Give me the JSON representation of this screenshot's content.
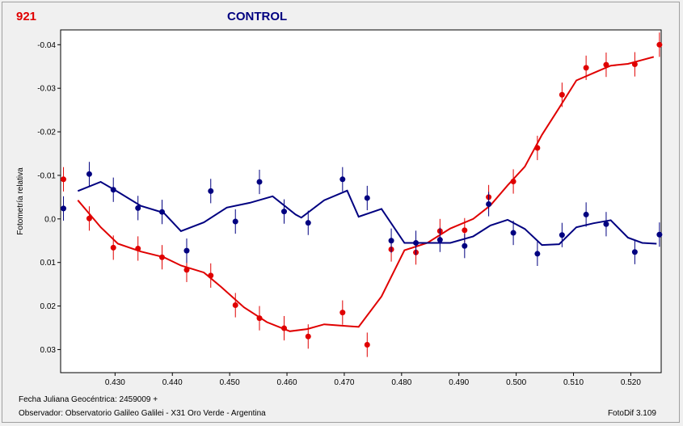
{
  "header": {
    "star_id": "921",
    "title": "CONTROL"
  },
  "footer": {
    "jd_line": "Fecha Juliana Geocéntrica: 2459009 +",
    "observer_line": "Observador: Observatorio Galileo Galilei - X31 Oro Verde - Argentina",
    "version": "FotoDif 3.109"
  },
  "chart_data": {
    "type": "scatter",
    "ylabel": "Fotometría relativa",
    "xlim": [
      0.4205,
      0.5253
    ],
    "ylim": [
      -0.0434,
      0.0353
    ],
    "y_inverted": true,
    "xticks": [
      0.43,
      0.44,
      0.45,
      0.46,
      0.47,
      0.48,
      0.49,
      0.5,
      0.51,
      0.52
    ],
    "xtick_labels": [
      "0.430",
      "0.440",
      "0.450",
      "0.460",
      "0.470",
      "0.480",
      "0.490",
      "0.500",
      "0.510",
      "0.520"
    ],
    "yticks": [
      -0.04,
      -0.03,
      -0.02,
      -0.01,
      0.0,
      0.01,
      0.02,
      0.03
    ],
    "ytick_labels": [
      "-0.04",
      "-0.03",
      "-0.02",
      "-0.01",
      "0.0",
      "0.01",
      "0.02",
      "0.03"
    ],
    "grid": false,
    "error_bar": 0.0028,
    "series": [
      {
        "color": "#e00000",
        "points": [
          [
            0.421,
            -0.0091
          ],
          [
            0.4255,
            -0.0001
          ],
          [
            0.4297,
            0.0066
          ],
          [
            0.434,
            0.0068
          ],
          [
            0.4382,
            0.0088
          ],
          [
            0.4425,
            0.0117
          ],
          [
            0.4467,
            0.013
          ],
          [
            0.451,
            0.0198
          ],
          [
            0.4552,
            0.0228
          ],
          [
            0.4595,
            0.0251
          ],
          [
            0.4637,
            0.027
          ],
          [
            0.4697,
            0.0215
          ],
          [
            0.474,
            0.0289
          ],
          [
            0.4782,
            0.007
          ],
          [
            0.4825,
            0.0077
          ],
          [
            0.4867,
            0.0028
          ],
          [
            0.491,
            0.0026
          ],
          [
            0.4952,
            -0.005
          ],
          [
            0.4995,
            -0.0086
          ],
          [
            0.5037,
            -0.0163
          ],
          [
            0.508,
            -0.0285
          ],
          [
            0.5122,
            -0.0347
          ],
          [
            0.5157,
            -0.0354
          ],
          [
            0.5207,
            -0.0355
          ],
          [
            0.525,
            -0.04
          ]
        ],
        "fit": [
          [
            0.4235,
            -0.0043
          ],
          [
            0.4275,
            0.0019
          ],
          [
            0.4305,
            0.0057
          ],
          [
            0.4345,
            0.0075
          ],
          [
            0.4385,
            0.0088
          ],
          [
            0.4415,
            0.0107
          ],
          [
            0.4455,
            0.0123
          ],
          [
            0.4485,
            0.0156
          ],
          [
            0.4525,
            0.0203
          ],
          [
            0.4565,
            0.0237
          ],
          [
            0.4605,
            0.0258
          ],
          [
            0.4635,
            0.0253
          ],
          [
            0.4665,
            0.0242
          ],
          [
            0.4705,
            0.0246
          ],
          [
            0.4725,
            0.0248
          ],
          [
            0.4765,
            0.0178
          ],
          [
            0.4805,
            0.0072
          ],
          [
            0.4845,
            0.0055
          ],
          [
            0.4885,
            0.0022
          ],
          [
            0.4925,
            0.0
          ],
          [
            0.4955,
            -0.0031
          ],
          [
            0.4985,
            -0.0077
          ],
          [
            0.5015,
            -0.012
          ],
          [
            0.5045,
            -0.0193
          ],
          [
            0.5075,
            -0.0255
          ],
          [
            0.5105,
            -0.0318
          ],
          [
            0.5135,
            -0.0335
          ],
          [
            0.5165,
            -0.0352
          ],
          [
            0.5195,
            -0.0356
          ],
          [
            0.522,
            -0.0365
          ],
          [
            0.524,
            -0.0372
          ]
        ]
      },
      {
        "color": "#000080",
        "points": [
          [
            0.421,
            -0.0024
          ],
          [
            0.4255,
            -0.0103
          ],
          [
            0.4297,
            -0.0067
          ],
          [
            0.434,
            -0.0025
          ],
          [
            0.4382,
            -0.0016
          ],
          [
            0.4425,
            0.0073
          ],
          [
            0.4467,
            -0.0064
          ],
          [
            0.451,
            0.0006
          ],
          [
            0.4552,
            -0.0085
          ],
          [
            0.4595,
            -0.0017
          ],
          [
            0.4637,
            0.0009
          ],
          [
            0.4697,
            -0.0091
          ],
          [
            0.474,
            -0.0048
          ],
          [
            0.4782,
            0.005
          ],
          [
            0.4825,
            0.0055
          ],
          [
            0.4867,
            0.0048
          ],
          [
            0.491,
            0.0062
          ],
          [
            0.4952,
            -0.0034
          ],
          [
            0.4995,
            0.0032
          ],
          [
            0.5037,
            0.008
          ],
          [
            0.508,
            0.0037
          ],
          [
            0.5122,
            -0.001
          ],
          [
            0.5157,
            0.0012
          ],
          [
            0.5207,
            0.0076
          ],
          [
            0.525,
            0.0036
          ]
        ],
        "fit": [
          [
            0.4235,
            -0.0064
          ],
          [
            0.4275,
            -0.0085
          ],
          [
            0.4305,
            -0.0062
          ],
          [
            0.4345,
            -0.003
          ],
          [
            0.4385,
            -0.0014
          ],
          [
            0.4415,
            0.0028
          ],
          [
            0.4455,
            0.0008
          ],
          [
            0.4495,
            -0.0026
          ],
          [
            0.4535,
            -0.0037
          ],
          [
            0.4575,
            -0.0052
          ],
          [
            0.4615,
            -0.001
          ],
          [
            0.4625,
            -0.0003
          ],
          [
            0.4665,
            -0.0043
          ],
          [
            0.4705,
            -0.0065
          ],
          [
            0.4725,
            -0.0005
          ],
          [
            0.4765,
            -0.0023
          ],
          [
            0.4805,
            0.0055
          ],
          [
            0.4845,
            0.0055
          ],
          [
            0.4885,
            0.0055
          ],
          [
            0.4925,
            0.004
          ],
          [
            0.4955,
            0.0015
          ],
          [
            0.4985,
            0.0002
          ],
          [
            0.5015,
            0.0023
          ],
          [
            0.5045,
            0.006
          ],
          [
            0.5075,
            0.0058
          ],
          [
            0.5105,
            0.0019
          ],
          [
            0.5135,
            0.001
          ],
          [
            0.5165,
            0.0003
          ],
          [
            0.5195,
            0.0043
          ],
          [
            0.522,
            0.0055
          ],
          [
            0.5245,
            0.0057
          ]
        ]
      }
    ]
  }
}
